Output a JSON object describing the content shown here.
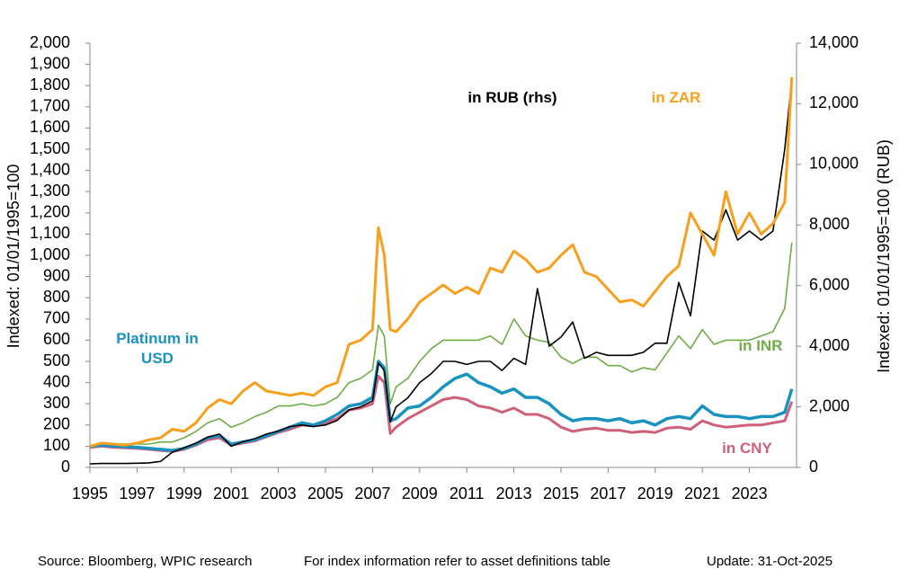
{
  "chart_data": {
    "type": "line",
    "ylabel": "Indexed:  01/01/1995=100",
    "y2label": "Indexed:  01/01/1995=100 (RUB)",
    "source": "Source: Bloomberg, WPIC research",
    "note": "For index information refer to asset definitions table",
    "update": "Update: 31-Oct-2025",
    "xlim": [
      1995,
      2025
    ],
    "xticks": [
      1995,
      1997,
      1999,
      2001,
      2003,
      2005,
      2007,
      2009,
      2011,
      2013,
      2015,
      2017,
      2019,
      2021,
      2023
    ],
    "ylim": [
      0,
      2000
    ],
    "yticks": [
      0,
      100,
      200,
      300,
      400,
      500,
      600,
      700,
      800,
      900,
      {
        "value": 1000,
        "label": "1,000"
      },
      {
        "value": 1100,
        "label": "1,100"
      },
      {
        "value": 1200,
        "label": "1,200"
      },
      {
        "value": 1300,
        "label": "1,300"
      },
      {
        "value": 1400,
        "label": "1,400"
      },
      {
        "value": 1500,
        "label": "1,500"
      },
      {
        "value": 1600,
        "label": "1,600"
      },
      {
        "value": 1700,
        "label": "1,700"
      },
      {
        "value": 1800,
        "label": "1,800"
      },
      {
        "value": 1900,
        "label": "1,900"
      },
      {
        "value": 2000,
        "label": "2,000"
      }
    ],
    "y2lim": [
      0,
      14000
    ],
    "y2ticks": [
      0,
      {
        "value": 2000,
        "label": "2,000"
      },
      {
        "value": 4000,
        "label": "4,000"
      },
      {
        "value": 6000,
        "label": "6,000"
      },
      {
        "value": 8000,
        "label": "8,000"
      },
      {
        "value": 10000,
        "label": "10,000"
      },
      {
        "value": 12000,
        "label": "12,000"
      },
      {
        "value": 14000,
        "label": "14,000"
      }
    ],
    "x": [
      1995,
      1995.5,
      1996,
      1996.5,
      1997,
      1997.5,
      1998,
      1998.5,
      1999,
      1999.5,
      2000,
      2000.5,
      2001,
      2001.5,
      2002,
      2002.5,
      2003,
      2003.5,
      2004,
      2004.5,
      2005,
      2005.5,
      2006,
      2006.5,
      2007,
      2007.25,
      2007.5,
      2007.75,
      2008,
      2008.5,
      2009,
      2009.5,
      2010,
      2010.5,
      2011,
      2011.5,
      2012,
      2012.5,
      2013,
      2013.5,
      2014,
      2014.5,
      2015,
      2015.5,
      2016,
      2016.5,
      2017,
      2017.5,
      2018,
      2018.5,
      2019,
      2019.5,
      2020,
      2020.5,
      2021,
      2021.5,
      2022,
      2022.5,
      2023,
      2023.5,
      2024,
      2024.5,
      2024.8
    ],
    "series": [
      {
        "name": "in INR",
        "color": "#70ad47",
        "width": 1.6,
        "values": [
          100,
          115,
          110,
          110,
          110,
          110,
          120,
          120,
          140,
          170,
          210,
          230,
          190,
          210,
          240,
          260,
          290,
          290,
          300,
          290,
          300,
          330,
          400,
          420,
          460,
          670,
          620,
          300,
          380,
          420,
          500,
          560,
          600,
          600,
          600,
          600,
          620,
          580,
          700,
          620,
          600,
          590,
          520,
          490,
          520,
          520,
          480,
          480,
          450,
          470,
          460,
          540,
          620,
          560,
          650,
          580,
          600,
          600,
          600,
          620,
          640,
          750,
          1060
        ]
      },
      {
        "name": "in CNY",
        "color": "#d0607a",
        "width": 3,
        "values": [
          95,
          100,
          95,
          92,
          90,
          85,
          80,
          75,
          85,
          105,
          130,
          140,
          105,
          115,
          125,
          145,
          165,
          180,
          200,
          195,
          210,
          230,
          270,
          280,
          300,
          430,
          400,
          160,
          190,
          230,
          260,
          290,
          320,
          330,
          320,
          290,
          280,
          260,
          280,
          250,
          250,
          230,
          190,
          170,
          180,
          185,
          175,
          175,
          165,
          170,
          165,
          185,
          190,
          180,
          220,
          200,
          190,
          195,
          200,
          200,
          210,
          220,
          310
        ]
      },
      {
        "name": "Platinum in USD",
        "color": "#1b93c0",
        "width": 3.5,
        "values": [
          100,
          105,
          100,
          98,
          95,
          90,
          85,
          80,
          90,
          110,
          140,
          150,
          110,
          120,
          130,
          150,
          170,
          190,
          210,
          200,
          220,
          250,
          290,
          300,
          330,
          500,
          470,
          220,
          230,
          280,
          290,
          330,
          380,
          420,
          440,
          400,
          380,
          350,
          370,
          330,
          330,
          300,
          250,
          220,
          230,
          230,
          220,
          230,
          210,
          220,
          200,
          230,
          240,
          230,
          290,
          250,
          240,
          240,
          230,
          240,
          240,
          260,
          370
        ]
      },
      {
        "name": "in RUB (rhs)",
        "color": "#000000",
        "width": 1.6,
        "axis": "y2",
        "values": [
          120,
          130,
          130,
          130,
          140,
          150,
          200,
          500,
          650,
          800,
          1000,
          1100,
          700,
          850,
          950,
          1100,
          1200,
          1350,
          1400,
          1350,
          1400,
          1550,
          1900,
          2000,
          2200,
          3450,
          3200,
          1500,
          2000,
          2300,
          2800,
          3100,
          3500,
          3500,
          3400,
          3500,
          3500,
          3200,
          3600,
          3400,
          5900,
          4000,
          4300,
          4800,
          3600,
          3800,
          3700,
          3700,
          3700,
          3800,
          4100,
          4100,
          6100,
          5000,
          7800,
          7500,
          8500,
          7500,
          7800,
          7500,
          7800,
          10500,
          12800
        ]
      },
      {
        "name": "in ZAR",
        "color": "#f7a01e",
        "width": 3,
        "values": [
          100,
          115,
          110,
          105,
          115,
          130,
          140,
          180,
          170,
          210,
          280,
          320,
          300,
          360,
          400,
          360,
          350,
          340,
          350,
          340,
          380,
          400,
          580,
          600,
          650,
          1130,
          1000,
          650,
          640,
          700,
          780,
          820,
          860,
          820,
          850,
          820,
          940,
          920,
          1020,
          980,
          920,
          940,
          1000,
          1050,
          920,
          900,
          840,
          780,
          790,
          760,
          830,
          900,
          950,
          1200,
          1100,
          1000,
          1300,
          1100,
          1200,
          1100,
          1150,
          1250,
          1840
        ]
      }
    ]
  }
}
